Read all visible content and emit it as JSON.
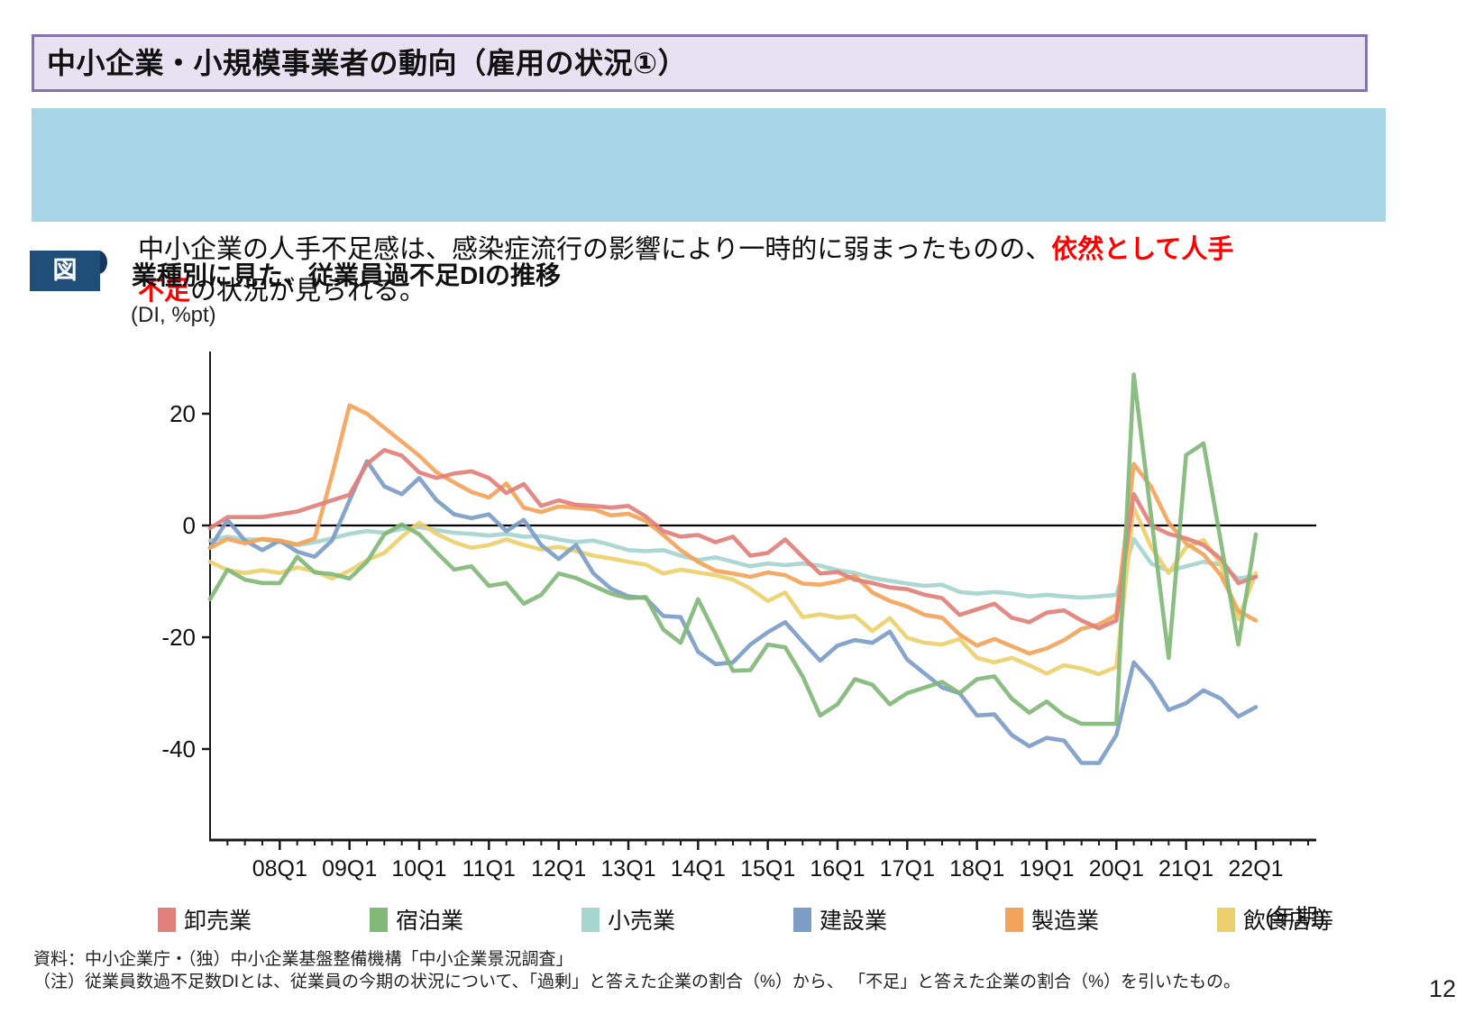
{
  "header": {
    "title": "中小企業・小規模事業者の動向（雇用の状況①）"
  },
  "callout": {
    "line1_normal": "中小企業の人手不足感は、感染症流行の影響により一時的に弱まったものの、",
    "line1_em": "依然として人手",
    "line2_em": "不足",
    "line2_normal": "の状況が見られる。"
  },
  "figure": {
    "tag": "図",
    "title": "業種別に見た、従業員過不足DIの推移",
    "unit_label": "(DI, %pt)",
    "x_axis_note": "(年期)"
  },
  "chart_data": {
    "type": "line",
    "title": "業種別に見た、従業員過不足DIの推移",
    "ylabel": "(DI, %pt)",
    "xlabel": "(年期)",
    "ylim": [
      -56,
      31
    ],
    "yticks": [
      20,
      0,
      -20,
      -40
    ],
    "zero_line": true,
    "grid": false,
    "legend_position": "bottom",
    "x": [
      "07Q1",
      "07Q2",
      "07Q3",
      "07Q4",
      "08Q1",
      "08Q2",
      "08Q3",
      "08Q4",
      "09Q1",
      "09Q2",
      "09Q3",
      "09Q4",
      "10Q1",
      "10Q2",
      "10Q3",
      "10Q4",
      "11Q1",
      "11Q2",
      "11Q3",
      "11Q4",
      "12Q1",
      "12Q2",
      "12Q3",
      "12Q4",
      "13Q1",
      "13Q2",
      "13Q3",
      "13Q4",
      "14Q1",
      "14Q2",
      "14Q3",
      "14Q4",
      "15Q1",
      "15Q2",
      "15Q3",
      "15Q4",
      "16Q1",
      "16Q2",
      "16Q3",
      "16Q4",
      "17Q1",
      "17Q2",
      "17Q3",
      "17Q4",
      "18Q1",
      "18Q2",
      "18Q3",
      "18Q4",
      "19Q1",
      "19Q2",
      "19Q3",
      "19Q4",
      "20Q1",
      "20Q2",
      "20Q3",
      "20Q4",
      "21Q1",
      "21Q2",
      "21Q3",
      "21Q4",
      "22Q1"
    ],
    "xtick_labels": [
      "08Q1",
      "09Q1",
      "10Q1",
      "11Q1",
      "12Q1",
      "13Q1",
      "14Q1",
      "15Q1",
      "16Q1",
      "17Q1",
      "18Q1",
      "19Q1",
      "20Q1",
      "21Q1",
      "22Q1"
    ],
    "series": [
      {
        "key": "wholesale",
        "name": "卸売業",
        "color": "#E2807B",
        "values": [
          -0.5,
          1.5,
          1.5,
          1.5,
          2,
          2.5,
          3.5,
          4.5,
          5.5,
          11,
          13.5,
          12.5,
          9.5,
          8.5,
          9.3,
          9.7,
          8.5,
          5.8,
          7.4,
          3.5,
          4.5,
          3.7,
          3.5,
          3.2,
          3.5,
          1.6,
          -1,
          -2,
          -1.7,
          -3,
          -2,
          -5.4,
          -4.9,
          -2.5,
          -5.6,
          -8.6,
          -8.3,
          -9.7,
          -10.3,
          -11.1,
          -11.4,
          -12.4,
          -13,
          -16,
          -15,
          -14,
          -16.5,
          -17.3,
          -15.6,
          -15.2,
          -17,
          -18.4,
          -17,
          5.6,
          0,
          -1.5,
          -2.3,
          -3.5,
          -6,
          -10.3,
          -9.2
        ]
      },
      {
        "key": "accommodation",
        "name": "宿泊業",
        "color": "#82B878",
        "values": [
          -13.2,
          -7.9,
          -9.7,
          -10.3,
          -10.3,
          -5.6,
          -8.4,
          -8.7,
          -9.5,
          -6.5,
          -1.6,
          0.2,
          -1.6,
          -4.8,
          -7.9,
          -7.3,
          -10.8,
          -10.3,
          -14,
          -12.4,
          -8.6,
          -9.4,
          -10.8,
          -12.2,
          -13,
          -12.8,
          -18.6,
          -21,
          -13.2,
          -19.5,
          -26,
          -25.9,
          -21.3,
          -21.8,
          -27,
          -34,
          -32,
          -27.5,
          -28.5,
          -32,
          -30,
          -29,
          -28,
          -30,
          -27.5,
          -27,
          -31,
          -33.5,
          -31.5,
          -34,
          -35.5,
          -35.5,
          -35.5,
          27,
          1.5,
          -23.7,
          12.6,
          14.7,
          -3,
          -21.3,
          -1.6
        ]
      },
      {
        "key": "retail",
        "name": "小売業",
        "color": "#A6D4CE",
        "values": [
          -2.7,
          -2,
          -2.5,
          -2.5,
          -3,
          -3.5,
          -3,
          -2.3,
          -1.5,
          -1,
          -1.3,
          -0.6,
          -0.3,
          -0.8,
          -1.3,
          -1.5,
          -1.8,
          -1.5,
          -2,
          -1.9,
          -2.5,
          -3,
          -2.7,
          -3.5,
          -4.4,
          -4.6,
          -4.4,
          -5.4,
          -6.2,
          -5.7,
          -6.5,
          -7.3,
          -6.8,
          -7.1,
          -6.8,
          -7.2,
          -8,
          -8.5,
          -9.4,
          -9.9,
          -10.4,
          -10.8,
          -10.6,
          -11.9,
          -12.2,
          -11.9,
          -12.2,
          -12.7,
          -12.4,
          -12.7,
          -12.9,
          -12.7,
          -12.4,
          -2.4,
          -6.8,
          -8.1,
          -7.3,
          -6.5,
          -7,
          -9.5,
          -9
        ]
      },
      {
        "key": "construction",
        "name": "建設業",
        "color": "#7D9DC7",
        "values": [
          -4,
          1,
          -2.7,
          -4.4,
          -2.7,
          -4.7,
          -5.6,
          -2.7,
          4.5,
          11.5,
          7,
          5.6,
          8.5,
          4.5,
          2,
          1.3,
          2,
          -1,
          1,
          -3.5,
          -6,
          -3.5,
          -8.6,
          -11.3,
          -12.7,
          -13,
          -16.2,
          -16.4,
          -22.6,
          -24.8,
          -24.5,
          -21.3,
          -19.1,
          -17.3,
          -20.8,
          -24.2,
          -21.5,
          -20.5,
          -21,
          -19,
          -24,
          -26.5,
          -29,
          -30,
          -34,
          -33.8,
          -37.5,
          -39.5,
          -38,
          -38.5,
          -42.5,
          -42.5,
          -37.5,
          -24.5,
          -28,
          -33,
          -31.8,
          -29.5,
          -31,
          -34.2,
          -32.5
        ]
      },
      {
        "key": "manufacturing",
        "name": "製造業",
        "color": "#F2A45A",
        "values": [
          -4,
          -2.4,
          -3.2,
          -2.4,
          -2.7,
          -3.4,
          -2.3,
          9,
          21.5,
          20,
          17.5,
          15,
          12.5,
          9.5,
          7.7,
          6,
          5,
          7.5,
          3.2,
          2.4,
          3.4,
          3.2,
          2.9,
          1.8,
          2.1,
          0.8,
          -1.7,
          -4.4,
          -6.5,
          -8.1,
          -8.6,
          -9.2,
          -8.4,
          -8.9,
          -10.4,
          -10.6,
          -10,
          -9,
          -12,
          -13.5,
          -14.5,
          -16,
          -16.5,
          -19.5,
          -21.5,
          -20.3,
          -21.6,
          -22.9,
          -22,
          -20.5,
          -18.5,
          -17.7,
          -16,
          11,
          6.9,
          0.5,
          -3.2,
          -5.2,
          -8.9,
          -15.3,
          -17
        ]
      },
      {
        "key": "restaurants",
        "name": "飲食店等",
        "color": "#EDD06E",
        "values": [
          -6.5,
          -8,
          -8.5,
          -8,
          -8.5,
          -7.5,
          -8.2,
          -9.5,
          -8.1,
          -6.2,
          -4.9,
          -2,
          0.5,
          -1.5,
          -3,
          -4,
          -3.5,
          -2.5,
          -3.5,
          -4.3,
          -3.8,
          -4.6,
          -5.4,
          -5.9,
          -6.5,
          -7,
          -8.6,
          -7.9,
          -8.4,
          -8.9,
          -9.7,
          -11.3,
          -13.5,
          -12,
          -16.4,
          -15.9,
          -16.5,
          -16.2,
          -18.9,
          -16.6,
          -20.1,
          -21,
          -21.3,
          -20.3,
          -23.7,
          -24.5,
          -23.7,
          -25,
          -26.5,
          -25,
          -25.6,
          -26.6,
          -25.3,
          3.2,
          -3.9,
          -8.5,
          -3.9,
          -2.6,
          -6.9,
          -16.8,
          -8.5
        ]
      }
    ]
  },
  "footer": {
    "source": "資料：中小企業庁・（独）中小企業基盤整備機構「中小企業景況調査」",
    "note": "（注）従業員数過不足数DIとは、従業員の今期の状況について、「過剰」と答えた企業の割合（%）から、 「不足」と答えた企業の割合（%）を引いたもの。",
    "page": "12"
  }
}
